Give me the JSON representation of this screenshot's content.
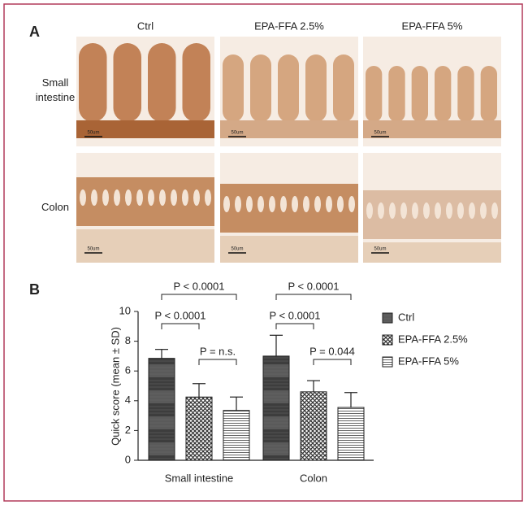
{
  "panel_a": {
    "label": "A",
    "columns": [
      "Ctrl",
      "EPA-FFA 2.5%",
      "EPA-FFA 5%"
    ],
    "rows": [
      "Small intestine",
      "Colon"
    ],
    "scale_bar": "50um"
  },
  "chart_data": {
    "type": "bar",
    "panel_label": "B",
    "y_label": "Quick score (mean ± SD)",
    "categories": [
      "Small intestine",
      "Colon"
    ],
    "series": [
      {
        "name": "Ctrl",
        "color": "#4d4d4d",
        "pattern": "bands",
        "values": [
          6.85,
          7.0
        ],
        "errors": [
          0.6,
          1.4
        ]
      },
      {
        "name": "EPA-FFA 2.5%",
        "color": "#3a3a3a",
        "pattern": "crosshatch",
        "values": [
          4.25,
          4.6
        ],
        "errors": [
          0.9,
          0.75
        ]
      },
      {
        "name": "EPA-FFA 5%",
        "color": "#555555",
        "pattern": "hlines",
        "values": [
          3.35,
          3.55
        ],
        "errors": [
          0.9,
          1.0
        ]
      }
    ],
    "ylim": [
      0,
      10
    ],
    "yticks": [
      0,
      2,
      4,
      6,
      8,
      10
    ],
    "annotations": [
      [
        {
          "label": "P < 0.0001",
          "groups": [
            "Ctrl",
            "EPA-FFA 5%"
          ]
        },
        {
          "label": "P < 0.0001",
          "groups": [
            "Ctrl",
            "EPA-FFA 2.5%"
          ]
        },
        {
          "label": "P = n.s.",
          "groups": [
            "EPA-FFA 2.5%",
            "EPA-FFA 5%"
          ]
        }
      ],
      [
        {
          "label": "P < 0.0001",
          "groups": [
            "Ctrl",
            "EPA-FFA 5%"
          ]
        },
        {
          "label": "P < 0.0001",
          "groups": [
            "Ctrl",
            "EPA-FFA 2.5%"
          ]
        },
        {
          "label": "P = 0.044",
          "groups": [
            "EPA-FFA 2.5%",
            "EPA-FFA 5%"
          ]
        }
      ]
    ],
    "legend": "right"
  }
}
